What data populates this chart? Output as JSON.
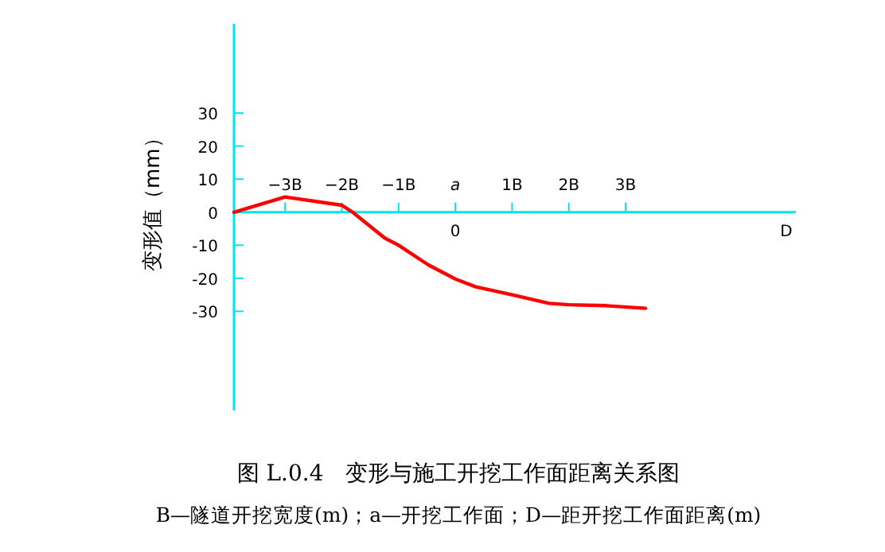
{
  "chart_data": {
    "type": "line",
    "title": "图 L.0.4　变形与施工开挖工作面距离关系图",
    "subtitle": "B—隧道开挖宽度(m)；a—开挖工作面；D—距开挖工作面距离(m)",
    "ylabel": "变形值（mm）",
    "xlim": [
      -3.9,
      6
    ],
    "ylim": [
      -60,
      57
    ],
    "xticks": [
      {
        "value": -3,
        "label": "−3B"
      },
      {
        "value": -2,
        "label": "−2B"
      },
      {
        "value": -1,
        "label": "−1B"
      },
      {
        "value": 0,
        "label": "a"
      },
      {
        "value": 1,
        "label": "1B"
      },
      {
        "value": 2,
        "label": "2B"
      },
      {
        "value": 3,
        "label": "3B"
      }
    ],
    "yticks": [
      -30,
      -20,
      -10,
      0,
      10,
      20,
      30
    ],
    "annotations": [
      "0",
      "D"
    ],
    "marker": "none",
    "line_style": "solid",
    "series": [
      {
        "color": "#ff0000",
        "x": [
          -3.9,
          -3,
          -2,
          -1.81,
          -1.24,
          -1,
          -0.47,
          0,
          0.36,
          1,
          1.65,
          2,
          2.66,
          3.35
        ],
        "values": [
          0,
          4.6,
          2.1,
          0,
          -7.9,
          -10,
          -16,
          -20.2,
          -22.6,
          -25,
          -27.6,
          -28,
          -28.3,
          -29.1
        ]
      }
    ]
  }
}
